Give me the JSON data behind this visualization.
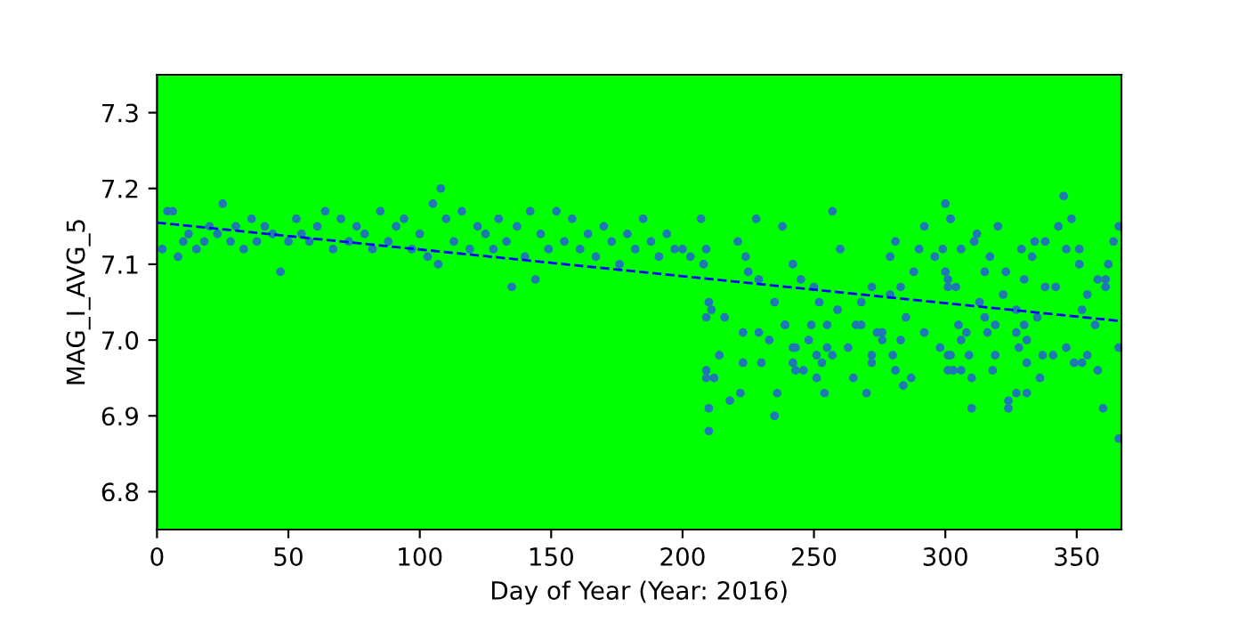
{
  "chart_data": {
    "type": "scatter",
    "xlabel": "Day of Year (Year: 2016)",
    "ylabel": "MAG_I_AVG_5",
    "xlim": [
      0,
      367
    ],
    "ylim": [
      6.75,
      7.35
    ],
    "xticks": [
      0,
      50,
      100,
      150,
      200,
      250,
      300,
      350
    ],
    "yticks": [
      6.8,
      6.9,
      {
        "value": 7.0,
        "label": "7.0"
      },
      7.1,
      7.2,
      7.3
    ],
    "grid": false,
    "series": [
      {
        "color": "#1f77b4",
        "marker": "circle",
        "x": [
          2,
          4,
          6,
          8,
          10,
          12,
          15,
          18,
          20,
          23,
          25,
          28,
          30,
          33,
          36,
          38,
          41,
          44,
          47,
          50,
          53,
          55,
          58,
          61,
          64,
          67,
          70,
          73,
          76,
          79,
          82,
          85,
          88,
          91,
          94,
          97,
          100,
          103,
          105,
          107,
          108,
          110,
          113,
          116,
          119,
          122,
          125,
          128,
          130,
          133,
          135,
          137,
          140,
          142,
          144,
          146,
          149,
          152,
          155,
          158,
          161,
          164,
          167,
          170,
          173,
          176,
          179,
          182,
          185,
          188,
          191,
          194,
          197,
          200,
          203,
          207,
          228,
          238,
          210,
          211,
          209,
          214,
          209,
          209,
          210,
          210,
          212,
          216,
          218,
          223,
          223,
          222,
          229,
          230,
          233,
          235,
          236,
          235,
          239,
          242,
          242,
          221,
          224,
          209,
          208,
          225,
          229,
          257,
          260,
          279,
          281,
          292,
          300,
          302,
          290,
          296,
          299,
          300,
          242,
          245,
          250,
          252,
          259,
          268,
          272,
          279,
          283,
          288,
          301,
          249,
          255,
          266,
          268,
          276,
          285,
          292,
          243,
          248,
          255,
          263,
          274,
          276,
          283,
          298,
          251,
          257,
          272,
          280,
          301,
          243,
          246,
          253,
          251,
          265,
          272,
          281,
          287,
          301,
          254,
          270,
          284,
          239,
          345,
          348,
          343,
          366,
          302,
          312,
          320,
          334,
          338,
          346,
          351,
          364,
          311,
          306,
          329,
          333,
          317,
          351,
          362,
          301,
          315,
          323,
          330,
          358,
          361,
          304,
          322,
          338,
          342,
          361,
          354,
          352,
          313,
          327,
          315,
          305,
          319,
          330,
          335,
          357,
          308,
          316,
          327,
          331,
          306,
          366,
          302,
          309,
          319,
          328,
          331,
          337,
          341,
          346,
          354,
          349,
          352,
          358,
          303,
          306,
          310,
          318,
          336,
          327,
          331,
          324,
          324,
          310,
          360,
          366
        ],
        "values": [
          7.12,
          7.17,
          7.17,
          7.11,
          7.13,
          7.14,
          7.12,
          7.13,
          7.15,
          7.14,
          7.18,
          7.13,
          7.15,
          7.12,
          7.16,
          7.13,
          7.15,
          7.14,
          7.09,
          7.13,
          7.16,
          7.14,
          7.13,
          7.15,
          7.17,
          7.12,
          7.16,
          7.13,
          7.15,
          7.14,
          7.12,
          7.17,
          7.13,
          7.15,
          7.16,
          7.12,
          7.14,
          7.11,
          7.18,
          7.1,
          7.2,
          7.16,
          7.13,
          7.17,
          7.12,
          7.15,
          7.14,
          7.12,
          7.16,
          7.13,
          7.07,
          7.15,
          7.11,
          7.17,
          7.08,
          7.14,
          7.12,
          7.17,
          7.13,
          7.16,
          7.12,
          7.14,
          7.11,
          7.15,
          7.13,
          7.1,
          7.14,
          7.12,
          7.16,
          7.13,
          7.11,
          7.14,
          7.12,
          7.12,
          7.11,
          7.16,
          7.16,
          7.15,
          7.05,
          7.04,
          7.03,
          6.98,
          6.96,
          6.95,
          6.91,
          6.88,
          6.95,
          7.03,
          6.92,
          7.01,
          6.97,
          6.93,
          7.01,
          6.97,
          7.0,
          7.05,
          6.93,
          6.9,
          7.02,
          6.99,
          6.97,
          7.13,
          7.11,
          7.12,
          7.1,
          7.09,
          7.08,
          7.17,
          7.12,
          7.11,
          7.13,
          7.15,
          7.18,
          7.16,
          7.12,
          7.11,
          7.12,
          7.09,
          7.1,
          7.08,
          7.07,
          7.05,
          7.04,
          7.05,
          7.07,
          7.06,
          7.07,
          7.09,
          7.07,
          7.02,
          7.02,
          7.02,
          7.02,
          7.01,
          7.03,
          7.01,
          6.99,
          7.0,
          6.99,
          6.99,
          7.01,
          7.0,
          7.0,
          6.99,
          6.98,
          6.98,
          6.98,
          6.98,
          6.98,
          6.96,
          6.96,
          6.97,
          6.95,
          6.95,
          6.97,
          6.96,
          6.95,
          6.96,
          6.93,
          6.93,
          6.94,
          7.02,
          7.19,
          7.16,
          7.15,
          7.15,
          7.16,
          7.14,
          7.15,
          7.13,
          7.13,
          7.12,
          7.12,
          7.13,
          7.13,
          7.12,
          7.12,
          7.11,
          7.11,
          7.1,
          7.1,
          7.08,
          7.09,
          7.09,
          7.08,
          7.08,
          7.08,
          7.07,
          7.06,
          7.07,
          7.07,
          7.07,
          7.06,
          7.04,
          7.05,
          7.04,
          7.03,
          7.02,
          7.02,
          7.02,
          7.03,
          7.02,
          7.01,
          7.01,
          7.01,
          7.0,
          7.0,
          6.99,
          6.98,
          6.98,
          6.98,
          6.99,
          6.97,
          6.98,
          6.98,
          6.99,
          6.98,
          6.97,
          6.97,
          6.96,
          6.96,
          6.96,
          6.95,
          6.96,
          6.95,
          6.93,
          6.93,
          6.92,
          6.91,
          6.91,
          6.91,
          6.87
        ]
      },
      {
        "type": "line",
        "color": "#0000ff",
        "marker": "none",
        "line_style": "dashed",
        "x": [
          0,
          367
        ],
        "values": [
          7.155,
          7.025
        ]
      }
    ]
  }
}
